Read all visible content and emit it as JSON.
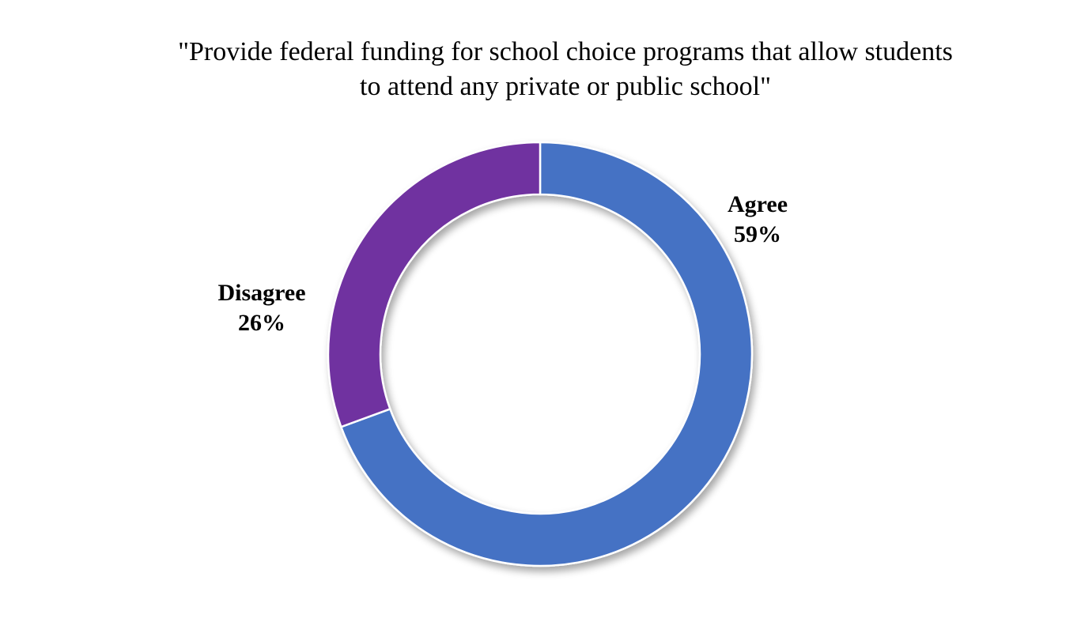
{
  "chart_data": {
    "type": "pie",
    "style": "donut",
    "title_lines": [
      "\"Provide federal funding for school choice programs that allow students",
      "to attend any private or public school\""
    ],
    "slices": [
      {
        "label": "Agree",
        "value": 59,
        "value_label": "59%",
        "color": "#4472C4"
      },
      {
        "label": "Disagree",
        "value": 26,
        "value_label": "26%",
        "color": "#7030A0"
      }
    ],
    "legend": "none"
  }
}
